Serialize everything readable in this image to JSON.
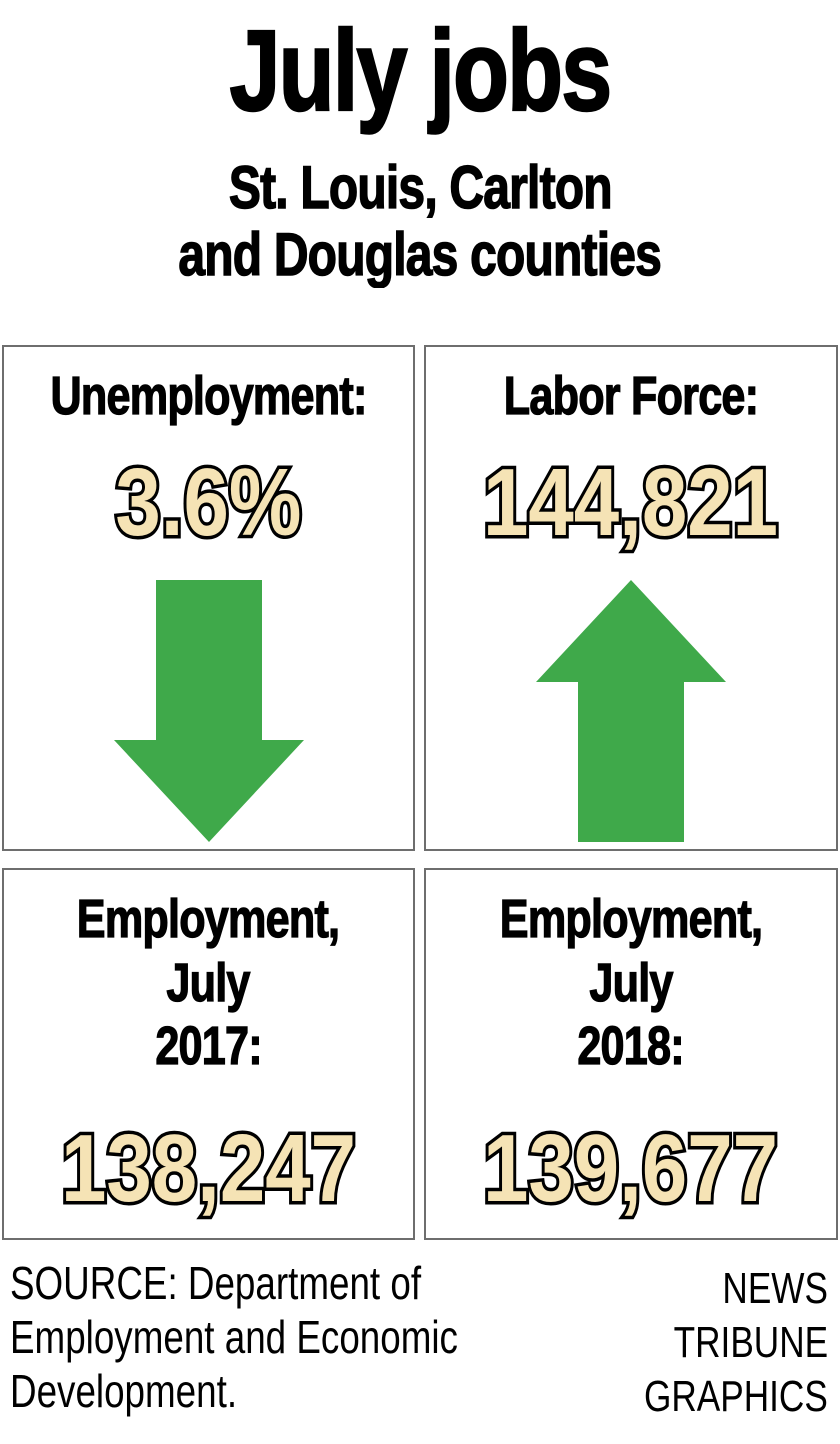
{
  "title": "July jobs",
  "subtitle_lines": [
    "St. Louis, Carlton",
    "and Douglas counties"
  ],
  "boxes": [
    {
      "label": "Unemployment:",
      "value": "3.6%",
      "arrow": "down"
    },
    {
      "label": "Labor Force:",
      "value": "144,821",
      "arrow": "up"
    },
    {
      "label_lines": [
        "Employment,",
        "July",
        "2017:"
      ],
      "value": "138,247"
    },
    {
      "label_lines": [
        "Employment,",
        "July",
        "2018:"
      ],
      "value": "139,677"
    }
  ],
  "footer": {
    "source_lines": [
      "SOURCE: Department of",
      "Employment and Economic",
      "Development."
    ],
    "credit_lines": [
      "NEWS",
      "TRIBUNE",
      "GRAPHICS"
    ]
  },
  "colors": {
    "accent_green": "#3fa94a",
    "number_fill": "#f5e3b5",
    "number_outline": "#000000",
    "box_border": "#6e6e6e",
    "text": "#000000"
  },
  "chart_data": {
    "type": "table",
    "title": "July jobs",
    "subtitle": "St. Louis, Carlton and Douglas counties",
    "metrics": [
      {
        "label": "Unemployment",
        "value": "3.6%",
        "trend": "down"
      },
      {
        "label": "Labor Force",
        "value": 144821,
        "trend": "up"
      },
      {
        "label": "Employment, July 2017",
        "value": 138247
      },
      {
        "label": "Employment, July 2018",
        "value": 139677
      }
    ],
    "source": "SOURCE: Department of Employment and Economic Development.",
    "credit": "NEWS TRIBUNE GRAPHICS"
  }
}
